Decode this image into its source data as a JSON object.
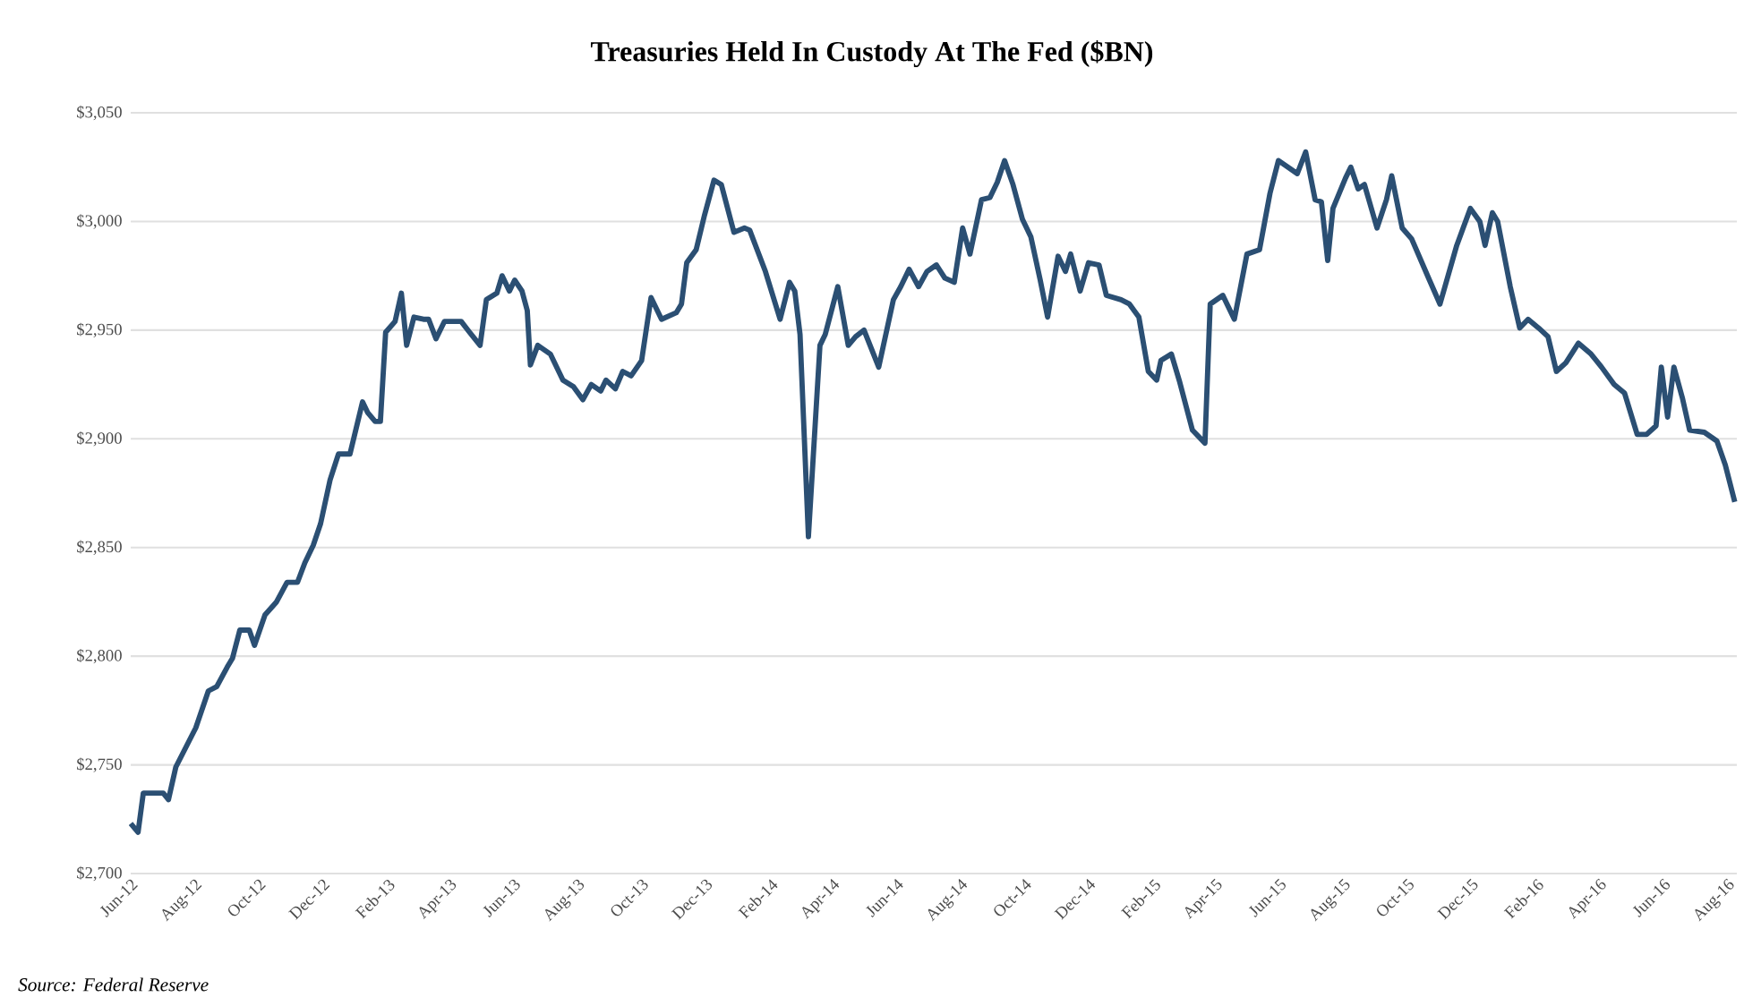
{
  "chart_data": {
    "type": "line",
    "title": "Treasuries Held In Custody At The Fed ($BN)",
    "annotations": [
      "Source: Federal Reserve"
    ],
    "x": [
      "2012-06-01",
      "2012-06-08",
      "2012-06-13",
      "2012-07-02",
      "2012-07-07",
      "2012-07-14",
      "2012-08-02",
      "2012-08-14",
      "2012-08-22",
      "2012-09-01",
      "2012-09-06",
      "2012-09-13",
      "2012-09-22",
      "2012-09-27",
      "2012-10-07",
      "2012-10-18",
      "2012-10-28",
      "2012-11-07",
      "2012-11-14",
      "2012-11-22",
      "2012-11-29",
      "2012-12-08",
      "2012-12-16",
      "2012-12-27",
      "2013-01-08",
      "2013-01-13",
      "2013-01-20",
      "2013-01-25",
      "2013-01-30",
      "2013-02-08",
      "2013-02-14",
      "2013-02-19",
      "2013-02-26",
      "2013-03-07",
      "2013-03-12",
      "2013-03-19",
      "2013-03-27",
      "2013-04-12",
      "2013-04-20",
      "2013-04-30",
      "2013-05-06",
      "2013-05-16",
      "2013-05-21",
      "2013-05-28",
      "2013-06-02",
      "2013-06-09",
      "2013-06-14",
      "2013-06-17",
      "2013-06-24",
      "2013-07-06",
      "2013-07-18",
      "2013-07-28",
      "2013-08-06",
      "2013-08-14",
      "2013-08-23",
      "2013-08-28",
      "2013-09-06",
      "2013-09-13",
      "2013-09-21",
      "2013-10-01",
      "2013-10-10",
      "2013-10-20",
      "2013-11-03",
      "2013-11-08",
      "2013-11-13",
      "2013-11-22",
      "2013-11-30",
      "2013-12-09",
      "2013-12-16",
      "2013-12-28",
      "2014-01-07",
      "2014-01-12",
      "2014-01-27",
      "2014-02-10",
      "2014-02-19",
      "2014-02-24",
      "2014-03-01",
      "2014-03-09",
      "2014-03-20",
      "2014-03-25",
      "2014-04-06",
      "2014-04-16",
      "2014-04-23",
      "2014-05-01",
      "2014-05-15",
      "2014-05-29",
      "2014-06-05",
      "2014-06-13",
      "2014-06-22",
      "2014-06-30",
      "2014-07-09",
      "2014-07-17",
      "2014-07-26",
      "2014-08-03",
      "2014-08-10",
      "2014-08-21",
      "2014-08-29",
      "2014-09-05",
      "2014-09-12",
      "2014-09-20",
      "2014-09-29",
      "2014-10-07",
      "2014-10-16",
      "2014-10-23",
      "2014-11-02",
      "2014-11-09",
      "2014-11-14",
      "2014-11-23",
      "2014-12-01",
      "2014-12-11",
      "2014-12-18",
      "2015-01-01",
      "2015-01-09",
      "2015-01-18",
      "2015-01-27",
      "2015-02-04",
      "2015-02-08",
      "2015-02-18",
      "2015-02-26",
      "2015-03-10",
      "2015-03-22",
      "2015-03-27",
      "2015-04-08",
      "2015-04-19",
      "2015-05-01",
      "2015-05-13",
      "2015-05-23",
      "2015-05-31",
      "2015-06-09",
      "2015-06-18",
      "2015-06-26",
      "2015-07-05",
      "2015-07-11",
      "2015-07-17",
      "2015-07-22",
      "2015-08-03",
      "2015-08-08",
      "2015-08-15",
      "2015-08-21",
      "2015-09-02",
      "2015-09-11",
      "2015-09-16",
      "2015-09-26",
      "2015-10-05",
      "2015-10-22",
      "2015-11-01",
      "2015-11-17",
      "2015-11-30",
      "2015-12-09",
      "2015-12-14",
      "2015-12-21",
      "2015-12-26",
      "2016-01-07",
      "2016-01-16",
      "2016-01-24",
      "2016-02-03",
      "2016-02-12",
      "2016-02-20",
      "2016-02-29",
      "2016-03-12",
      "2016-03-24",
      "2016-04-03",
      "2016-04-15",
      "2016-04-25",
      "2016-05-07",
      "2016-05-16",
      "2016-05-25",
      "2016-05-30",
      "2016-06-05",
      "2016-06-11",
      "2016-06-19",
      "2016-06-26",
      "2016-07-10",
      "2016-07-22",
      "2016-07-30",
      "2016-08-08"
    ],
    "series": [
      {
        "color": "#2b4f73",
        "values": [
          2723,
          2719,
          2737,
          2737,
          2734,
          2749,
          2767,
          2784,
          2786,
          2795,
          2799,
          2812,
          2812,
          2805,
          2819,
          2825,
          2834,
          2834,
          2843,
          2851,
          2861,
          2881,
          2893,
          2893,
          2917,
          2912,
          2908,
          2908,
          2949,
          2954,
          2967,
          2943,
          2956,
          2955,
          2955,
          2946,
          2954,
          2954,
          2949,
          2943,
          2964,
          2967,
          2975,
          2968,
          2973,
          2968,
          2959,
          2934,
          2943,
          2939,
          2927,
          2924,
          2918,
          2925,
          2922,
          2927,
          2923,
          2931,
          2929,
          2936,
          2965,
          2955,
          2958,
          2962,
          2981,
          2987,
          3003,
          3019,
          3017,
          2995,
          2997,
          2996,
          2977,
          2955,
          2972,
          2968,
          2948,
          2855,
          2943,
          2948,
          2970,
          2943,
          2947,
          2950,
          2933,
          2964,
          2970,
          2978,
          2970,
          2977,
          2980,
          2974,
          2972,
          2997,
          2985,
          3010,
          3011,
          3018,
          3028,
          3017,
          3001,
          2993,
          2973,
          2956,
          2984,
          2977,
          2985,
          2968,
          2981,
          2980,
          2966,
          2964,
          2962,
          2956,
          2931,
          2927,
          2936,
          2939,
          2926,
          2904,
          2898,
          2962,
          2966,
          2955,
          2985,
          2987,
          3013,
          3028,
          3025,
          3022,
          3032,
          3010,
          3009,
          2982,
          3006,
          3020,
          3025,
          3015,
          3017,
          2997,
          3010,
          3021,
          2997,
          2992,
          2973,
          2962,
          2989,
          3006,
          3000,
          2989,
          3004,
          3000,
          2970,
          2951,
          2955,
          2951,
          2947,
          2931,
          2935,
          2944,
          2939,
          2933,
          2925,
          2921,
          2902,
          2902,
          2906,
          2933,
          2910,
          2933,
          2919,
          2904,
          2903,
          2899,
          2888,
          2871
        ]
      }
    ],
    "xlim": [
      "2012-06-01",
      "2016-08-10"
    ],
    "xticks": [
      {
        "value": "2012-06-01",
        "label": "Jun-12"
      },
      {
        "value": "2012-08-01",
        "label": "Aug-12"
      },
      {
        "value": "2012-10-01",
        "label": "Oct-12"
      },
      {
        "value": "2012-12-01",
        "label": "Dec-12"
      },
      {
        "value": "2013-02-01",
        "label": "Feb-13"
      },
      {
        "value": "2013-04-01",
        "label": "Apr-13"
      },
      {
        "value": "2013-06-01",
        "label": "Jun-13"
      },
      {
        "value": "2013-08-01",
        "label": "Aug-13"
      },
      {
        "value": "2013-10-01",
        "label": "Oct-13"
      },
      {
        "value": "2013-12-01",
        "label": "Dec-13"
      },
      {
        "value": "2014-02-01",
        "label": "Feb-14"
      },
      {
        "value": "2014-04-01",
        "label": "Apr-14"
      },
      {
        "value": "2014-06-01",
        "label": "Jun-14"
      },
      {
        "value": "2014-08-01",
        "label": "Aug-14"
      },
      {
        "value": "2014-10-01",
        "label": "Oct-14"
      },
      {
        "value": "2014-12-01",
        "label": "Dec-14"
      },
      {
        "value": "2015-02-01",
        "label": "Feb-15"
      },
      {
        "value": "2015-04-01",
        "label": "Apr-15"
      },
      {
        "value": "2015-06-01",
        "label": "Jun-15"
      },
      {
        "value": "2015-08-01",
        "label": "Aug-15"
      },
      {
        "value": "2015-10-01",
        "label": "Oct-15"
      },
      {
        "value": "2015-12-01",
        "label": "Dec-15"
      },
      {
        "value": "2016-02-01",
        "label": "Feb-16"
      },
      {
        "value": "2016-04-01",
        "label": "Apr-16"
      },
      {
        "value": "2016-06-01",
        "label": "Jun-16"
      },
      {
        "value": "2016-08-01",
        "label": "Aug-16"
      }
    ],
    "ylim": [
      2700,
      3050
    ],
    "yticks": [
      {
        "value": 2700,
        "label": "$2,700"
      },
      {
        "value": 2750,
        "label": "$2,750"
      },
      {
        "value": 2800,
        "label": "$2,800"
      },
      {
        "value": 2850,
        "label": "$2,850"
      },
      {
        "value": 2900,
        "label": "$2,900"
      },
      {
        "value": 2950,
        "label": "$2,950"
      },
      {
        "value": 3000,
        "label": "$3,000"
      },
      {
        "value": 3050,
        "label": "$3,050"
      }
    ],
    "grid": "y"
  }
}
